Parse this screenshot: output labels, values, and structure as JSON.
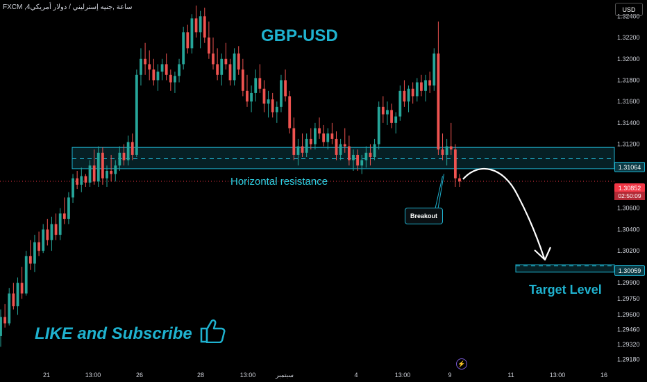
{
  "header": {
    "symbol": "FXCM ,4ساعة ,جنيه إسترليني / دولار أمريكي",
    "currency_button": "USD"
  },
  "annotations": {
    "title": "GBP-USD",
    "resistance_label": "Horizontal resistance",
    "breakout_label": "Breakout",
    "target_label": "Target Level",
    "cta": "LIKE and Subscribe",
    "thumbs_icon": "thumbs-up-icon",
    "bolt_icon": "lightning-icon"
  },
  "price_tags": {
    "current": "1.30852",
    "countdown": "02:50:09",
    "resistance": "1.31064",
    "target": "1.30059"
  },
  "colors": {
    "up": "#26a69a",
    "down": "#ef5350",
    "accent": "#1fb2cf",
    "current_price": "#f23645"
  },
  "chart_data": {
    "type": "candlestick",
    "y_axis": {
      "range": [
        1.291,
        1.325
      ],
      "ticks": [
        "1.32400",
        "1.32200",
        "1.32000",
        "1.31800",
        "1.31600",
        "1.31400",
        "1.31200",
        "1.31000",
        "1.30600",
        "1.30400",
        "1.30200",
        "1.29900",
        "1.29750",
        "1.29600",
        "1.29460",
        "1.29320",
        "1.29180"
      ]
    },
    "x_axis": {
      "ticks": [
        "21",
        "13:00",
        "26",
        "28",
        "13:00",
        "سبتمبر",
        "4",
        "13:00",
        "9",
        "11",
        "13:00",
        "16"
      ]
    },
    "zones": {
      "resistance": {
        "top": 1.3117,
        "bottom": 1.3097,
        "mid": 1.31064
      },
      "target": {
        "top": 1.3007,
        "bottom": 1.3,
        "mid": 1.30059
      }
    },
    "current_price": 1.30852,
    "candles": [
      [
        1.294,
        1.2965,
        1.293,
        1.2958
      ],
      [
        1.2958,
        1.297,
        1.2948,
        1.2952
      ],
      [
        1.2952,
        1.2985,
        1.295,
        1.298
      ],
      [
        1.298,
        1.299,
        1.2965,
        1.2968
      ],
      [
        1.2968,
        1.2995,
        1.296,
        1.299
      ],
      [
        1.299,
        1.3005,
        1.2975,
        1.298
      ],
      [
        1.298,
        1.302,
        1.2978,
        1.3015
      ],
      [
        1.3015,
        1.303,
        1.3002,
        1.3008
      ],
      [
        1.3008,
        1.3035,
        1.3,
        1.3028
      ],
      [
        1.3028,
        1.3038,
        1.3015,
        1.302
      ],
      [
        1.302,
        1.3045,
        1.3018,
        1.304
      ],
      [
        1.304,
        1.305,
        1.3025,
        1.303
      ],
      [
        1.303,
        1.3052,
        1.302,
        1.3045
      ],
      [
        1.3045,
        1.3055,
        1.303,
        1.3035
      ],
      [
        1.3035,
        1.306,
        1.303,
        1.3055
      ],
      [
        1.3055,
        1.307,
        1.3045,
        1.305
      ],
      [
        1.305,
        1.3075,
        1.3045,
        1.307
      ],
      [
        1.307,
        1.3092,
        1.3065,
        1.3088
      ],
      [
        1.3088,
        1.3095,
        1.3078,
        1.3082
      ],
      [
        1.3082,
        1.3098,
        1.3075,
        1.309
      ],
      [
        1.309,
        1.3092,
        1.308,
        1.3084
      ],
      [
        1.3084,
        1.3105,
        1.308,
        1.31
      ],
      [
        1.31,
        1.3115,
        1.3082,
        1.3085
      ],
      [
        1.3085,
        1.3118,
        1.308,
        1.3112
      ],
      [
        1.3112,
        1.3117,
        1.3082,
        1.3088
      ],
      [
        1.3088,
        1.31,
        1.308,
        1.3095
      ],
      [
        1.3095,
        1.311,
        1.3085,
        1.3092
      ],
      [
        1.3092,
        1.3105,
        1.3085,
        1.31
      ],
      [
        1.31,
        1.3118,
        1.3095,
        1.3112
      ],
      [
        1.3112,
        1.312,
        1.31,
        1.3105
      ],
      [
        1.3105,
        1.3128,
        1.31,
        1.3122
      ],
      [
        1.3122,
        1.313,
        1.3105,
        1.311
      ],
      [
        1.311,
        1.319,
        1.3108,
        1.3185
      ],
      [
        1.3185,
        1.321,
        1.3175,
        1.32
      ],
      [
        1.32,
        1.3215,
        1.3185,
        1.3195
      ],
      [
        1.3195,
        1.3208,
        1.318,
        1.319
      ],
      [
        1.319,
        1.32,
        1.3175,
        1.318
      ],
      [
        1.318,
        1.3195,
        1.317,
        1.3188
      ],
      [
        1.3188,
        1.32,
        1.318,
        1.3195
      ],
      [
        1.3195,
        1.3205,
        1.318,
        1.3185
      ],
      [
        1.3185,
        1.319,
        1.317,
        1.3178
      ],
      [
        1.3178,
        1.3188,
        1.3168,
        1.3184
      ],
      [
        1.3184,
        1.32,
        1.3178,
        1.3195
      ],
      [
        1.3195,
        1.323,
        1.319,
        1.3225
      ],
      [
        1.3225,
        1.3232,
        1.3205,
        1.321
      ],
      [
        1.321,
        1.3242,
        1.3205,
        1.3238
      ],
      [
        1.3238,
        1.325,
        1.322,
        1.3225
      ],
      [
        1.3225,
        1.3245,
        1.321,
        1.324
      ],
      [
        1.324,
        1.3248,
        1.3215,
        1.322
      ],
      [
        1.322,
        1.3235,
        1.32,
        1.3205
      ],
      [
        1.3205,
        1.322,
        1.319,
        1.3195
      ],
      [
        1.3195,
        1.321,
        1.318,
        1.3185
      ],
      [
        1.3185,
        1.3205,
        1.3175,
        1.32
      ],
      [
        1.32,
        1.3215,
        1.319,
        1.3195
      ],
      [
        1.3195,
        1.32,
        1.3175,
        1.318
      ],
      [
        1.318,
        1.321,
        1.3175,
        1.3205
      ],
      [
        1.3205,
        1.3212,
        1.3185,
        1.319
      ],
      [
        1.319,
        1.32,
        1.3165,
        1.317
      ],
      [
        1.317,
        1.3185,
        1.3155,
        1.316
      ],
      [
        1.316,
        1.3175,
        1.315,
        1.3168
      ],
      [
        1.3168,
        1.319,
        1.316,
        1.3182
      ],
      [
        1.3182,
        1.3195,
        1.3168,
        1.3172
      ],
      [
        1.3172,
        1.318,
        1.315,
        1.3158
      ],
      [
        1.3158,
        1.317,
        1.3145,
        1.3162
      ],
      [
        1.3162,
        1.3168,
        1.3145,
        1.315
      ],
      [
        1.315,
        1.316,
        1.314,
        1.3155
      ],
      [
        1.3155,
        1.3185,
        1.315,
        1.318
      ],
      [
        1.318,
        1.319,
        1.316,
        1.3165
      ],
      [
        1.3165,
        1.317,
        1.313,
        1.3135
      ],
      [
        1.3135,
        1.3145,
        1.3105,
        1.311
      ],
      [
        1.311,
        1.3125,
        1.31,
        1.3118
      ],
      [
        1.3118,
        1.313,
        1.3108,
        1.3112
      ],
      [
        1.3112,
        1.313,
        1.3108,
        1.3125
      ],
      [
        1.3125,
        1.3135,
        1.3115,
        1.312
      ],
      [
        1.312,
        1.314,
        1.3115,
        1.3135
      ],
      [
        1.3135,
        1.3145,
        1.3125,
        1.313
      ],
      [
        1.313,
        1.3138,
        1.3118,
        1.3122
      ],
      [
        1.3122,
        1.3135,
        1.3115,
        1.313
      ],
      [
        1.313,
        1.314,
        1.312,
        1.3125
      ],
      [
        1.3125,
        1.3132,
        1.3105,
        1.311
      ],
      [
        1.311,
        1.3125,
        1.3105,
        1.312
      ],
      [
        1.312,
        1.3135,
        1.3112,
        1.3118
      ],
      [
        1.3118,
        1.3128,
        1.31,
        1.3105
      ],
      [
        1.3105,
        1.3115,
        1.3095,
        1.311
      ],
      [
        1.311,
        1.3115,
        1.3095,
        1.31
      ],
      [
        1.31,
        1.311,
        1.3092,
        1.3105
      ],
      [
        1.3105,
        1.3118,
        1.3098,
        1.3112
      ],
      [
        1.3112,
        1.312,
        1.31,
        1.3108
      ],
      [
        1.3108,
        1.3125,
        1.3105,
        1.312
      ],
      [
        1.312,
        1.316,
        1.3115,
        1.3155
      ],
      [
        1.3155,
        1.3165,
        1.314,
        1.3148
      ],
      [
        1.3148,
        1.316,
        1.3138,
        1.3152
      ],
      [
        1.3152,
        1.3158,
        1.3135,
        1.314
      ],
      [
        1.314,
        1.315,
        1.313,
        1.3146
      ],
      [
        1.3146,
        1.3175,
        1.3142,
        1.317
      ],
      [
        1.317,
        1.318,
        1.3155,
        1.316
      ],
      [
        1.316,
        1.3175,
        1.315,
        1.3172
      ],
      [
        1.3172,
        1.3178,
        1.3158,
        1.3165
      ],
      [
        1.3165,
        1.3182,
        1.316,
        1.3178
      ],
      [
        1.3178,
        1.3185,
        1.3165,
        1.317
      ],
      [
        1.317,
        1.3185,
        1.316,
        1.318
      ],
      [
        1.318,
        1.3188,
        1.3168,
        1.3175
      ],
      [
        1.3175,
        1.321,
        1.317,
        1.3205
      ],
      [
        1.3205,
        1.3235,
        1.311,
        1.3115
      ],
      [
        1.3115,
        1.313,
        1.3105,
        1.311
      ],
      [
        1.311,
        1.3125,
        1.31,
        1.3118
      ],
      [
        1.3118,
        1.314,
        1.311,
        1.3115
      ],
      [
        1.3115,
        1.312,
        1.308,
        1.3088
      ],
      [
        1.3088,
        1.3092,
        1.308,
        1.3085
      ]
    ]
  }
}
